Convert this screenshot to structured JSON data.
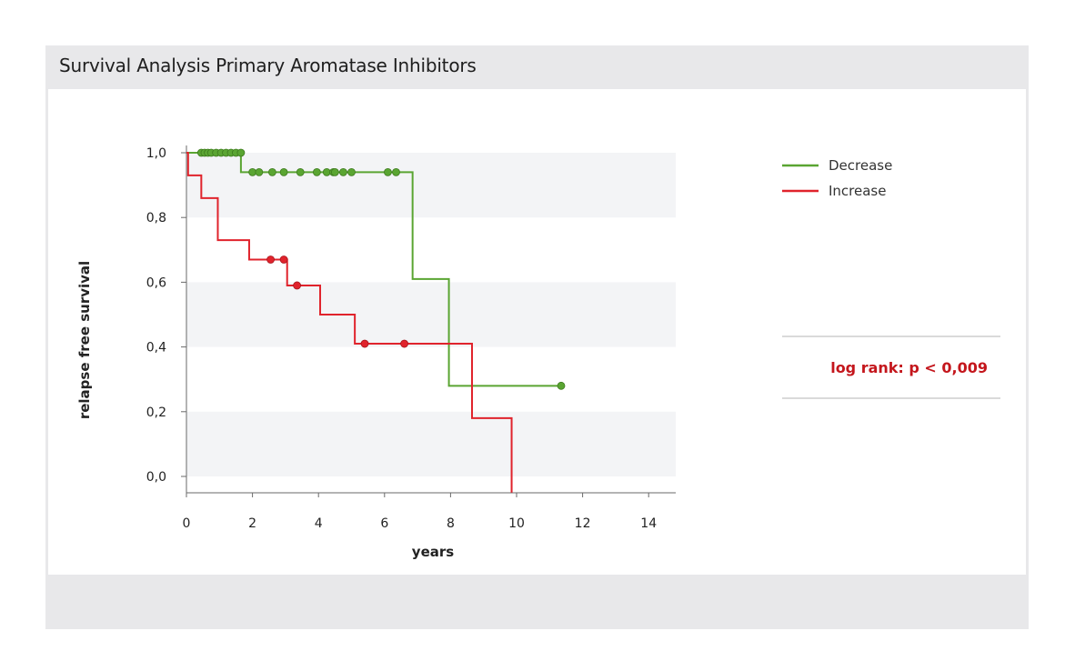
{
  "panel": {
    "title": "Survival Analysis Primary Aromatase Inhibitors"
  },
  "colors": {
    "decrease": "#5aa532",
    "increase": "#e0232c",
    "annotation": "#c4161c",
    "band": "#f3f4f6",
    "axis": "#6a6a6a"
  },
  "chart_data": {
    "type": "line",
    "subtype": "kaplan-meier step",
    "title": "",
    "xlabel": "years",
    "ylabel": "relapse free survival",
    "xlim": [
      0,
      15
    ],
    "ylim": [
      -0.05,
      1.0
    ],
    "x_ticks": [
      0,
      2,
      4,
      6,
      8,
      10,
      12,
      14
    ],
    "x_tick_labels": [
      "0",
      "2",
      "4",
      "6",
      "8",
      "10",
      "12",
      "14"
    ],
    "y_ticks": [
      0.0,
      0.2,
      0.4,
      0.6,
      0.8,
      1.0
    ],
    "y_tick_labels": [
      "0,0",
      "0,2",
      "0,4",
      "0,6",
      "0,8",
      "1,0"
    ],
    "grid": "alternating horizontal bands",
    "legend_position": "top-right",
    "annotation": "log rank: p < 0,009",
    "series": [
      {
        "name": "Decrease",
        "color": "#5aa532",
        "steps": [
          {
            "x": 0,
            "y": 1.0
          },
          {
            "x": 1.65,
            "y": 0.94
          },
          {
            "x": 6.85,
            "y": 0.61
          },
          {
            "x": 7.95,
            "y": 0.28
          },
          {
            "x": 11.4,
            "y": 0.28
          }
        ],
        "censored": [
          {
            "x": 0.45,
            "y": 1.0
          },
          {
            "x": 0.55,
            "y": 1.0
          },
          {
            "x": 0.65,
            "y": 1.0
          },
          {
            "x": 0.75,
            "y": 1.0
          },
          {
            "x": 0.9,
            "y": 1.0
          },
          {
            "x": 1.05,
            "y": 1.0
          },
          {
            "x": 1.2,
            "y": 1.0
          },
          {
            "x": 1.35,
            "y": 1.0
          },
          {
            "x": 1.5,
            "y": 1.0
          },
          {
            "x": 1.65,
            "y": 1.0
          },
          {
            "x": 2.0,
            "y": 0.94
          },
          {
            "x": 2.2,
            "y": 0.94
          },
          {
            "x": 2.6,
            "y": 0.94
          },
          {
            "x": 2.95,
            "y": 0.94
          },
          {
            "x": 3.45,
            "y": 0.94
          },
          {
            "x": 3.95,
            "y": 0.94
          },
          {
            "x": 4.25,
            "y": 0.94
          },
          {
            "x": 4.45,
            "y": 0.94
          },
          {
            "x": 4.5,
            "y": 0.94
          },
          {
            "x": 4.75,
            "y": 0.94
          },
          {
            "x": 5.0,
            "y": 0.94
          },
          {
            "x": 6.1,
            "y": 0.94
          },
          {
            "x": 6.35,
            "y": 0.94
          },
          {
            "x": 11.35,
            "y": 0.28
          }
        ]
      },
      {
        "name": "Increase",
        "color": "#e0232c",
        "steps": [
          {
            "x": 0,
            "y": 1.0
          },
          {
            "x": 0.05,
            "y": 0.93
          },
          {
            "x": 0.45,
            "y": 0.86
          },
          {
            "x": 0.95,
            "y": 0.73
          },
          {
            "x": 1.9,
            "y": 0.67
          },
          {
            "x": 3.05,
            "y": 0.59
          },
          {
            "x": 4.05,
            "y": 0.5
          },
          {
            "x": 5.1,
            "y": 0.41
          },
          {
            "x": 8.65,
            "y": 0.18
          },
          {
            "x": 9.85,
            "y": -0.05
          }
        ],
        "censored": [
          {
            "x": 2.55,
            "y": 0.67
          },
          {
            "x": 2.95,
            "y": 0.67
          },
          {
            "x": 3.35,
            "y": 0.59
          },
          {
            "x": 5.4,
            "y": 0.41
          },
          {
            "x": 6.6,
            "y": 0.41
          }
        ]
      }
    ]
  }
}
